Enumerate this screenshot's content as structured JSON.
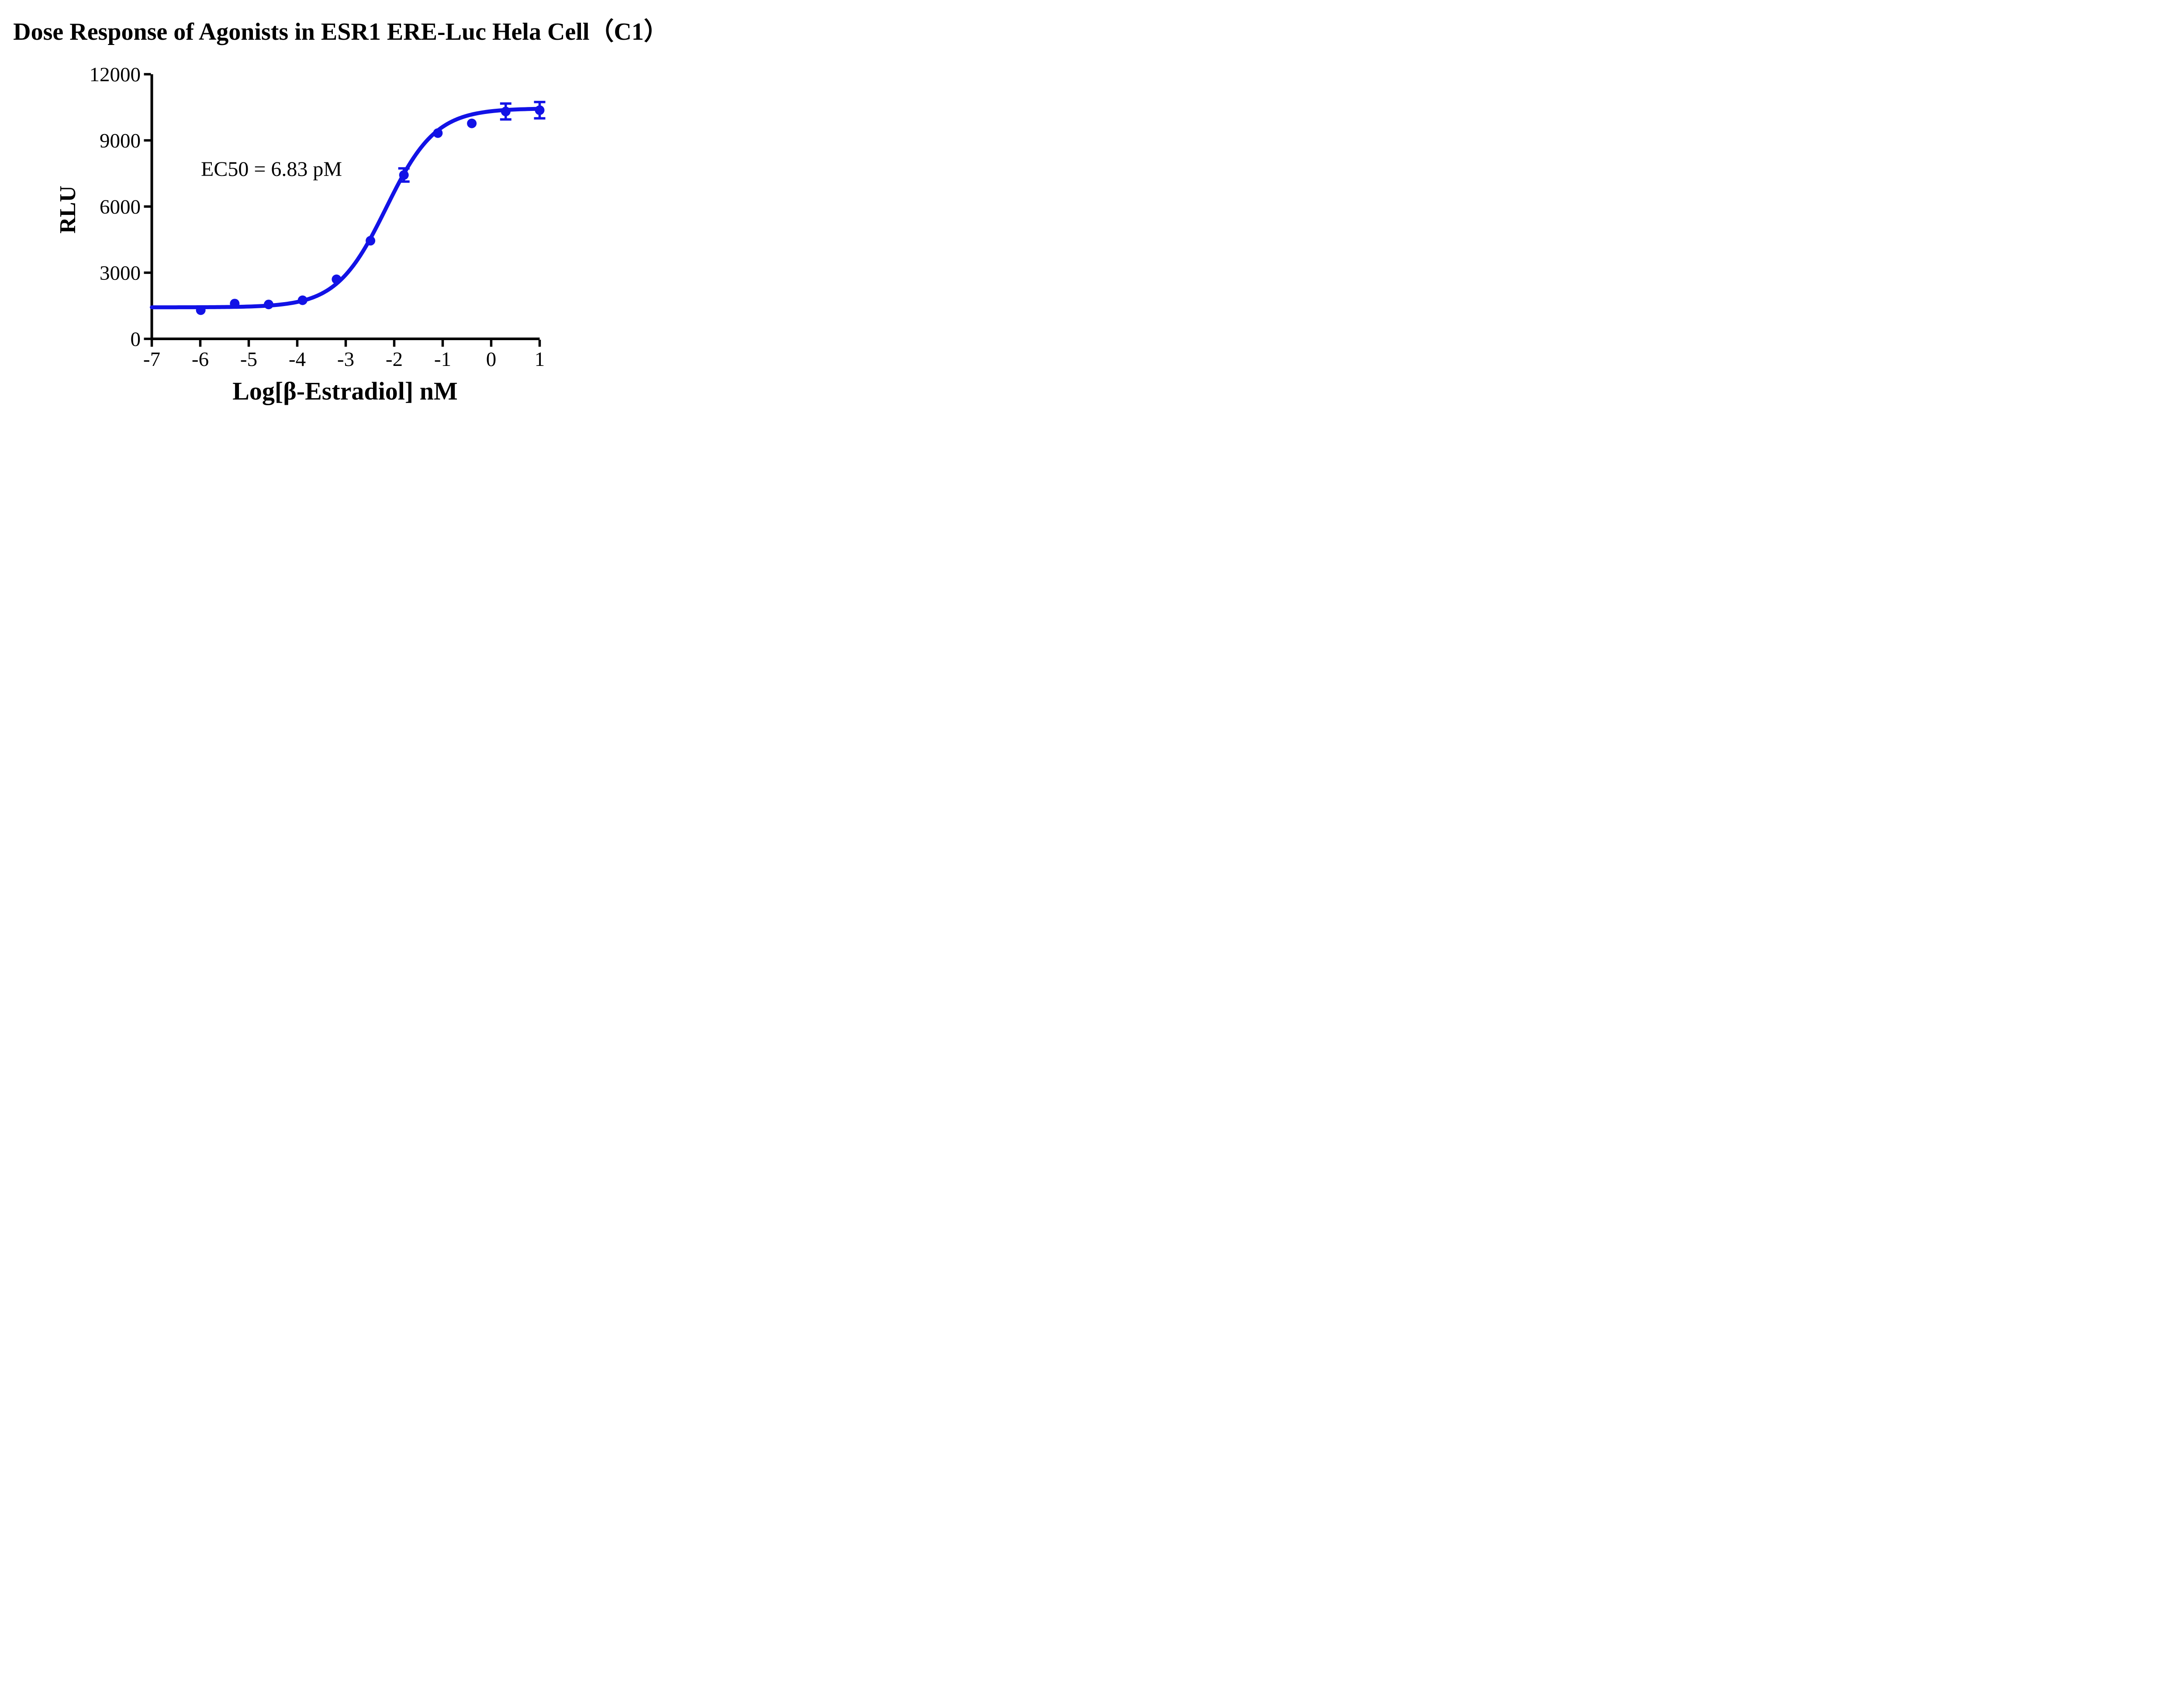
{
  "page": {
    "background": "#FFFFFF"
  },
  "chart_data": {
    "type": "scatter",
    "title": "Dose Response of Agonists in ESR1 ERE-Luc Hela Cell（C1）",
    "xlabel": "Log[β-Estradiol] nM",
    "ylabel": "RLU",
    "annotation": "EC50 = 6.83 pM",
    "xlim": [
      -7,
      1
    ],
    "ylim": [
      0,
      12000
    ],
    "x_ticks": [
      -7,
      -6,
      -5,
      -4,
      -3,
      -2,
      -1,
      0,
      1
    ],
    "y_ticks": [
      0,
      3000,
      6000,
      9000,
      12000
    ],
    "grid": false,
    "legend": false,
    "colors": {
      "series": "#1212E6",
      "axis": "#000000",
      "text": "#000000",
      "background": "#FFFFFF"
    },
    "series": [
      {
        "marker": "circle",
        "color": "#1212E6",
        "points": [
          {
            "x": -5.99,
            "y": 1300,
            "err": null
          },
          {
            "x": -5.29,
            "y": 1600,
            "err": null
          },
          {
            "x": -4.59,
            "y": 1560,
            "err": null
          },
          {
            "x": -3.89,
            "y": 1750,
            "err": null
          },
          {
            "x": -3.19,
            "y": 2700,
            "err": null
          },
          {
            "x": -2.49,
            "y": 4450,
            "err": null
          },
          {
            "x": -1.8,
            "y": 7430,
            "err": 300
          },
          {
            "x": -1.1,
            "y": 9330,
            "err": null
          },
          {
            "x": -0.4,
            "y": 9770,
            "err": null
          },
          {
            "x": 0.3,
            "y": 10310,
            "err": 360
          },
          {
            "x": 1.0,
            "y": 10370,
            "err": 370
          }
        ],
        "fit": {
          "model": "4PL",
          "bottom": 1430,
          "top": 10450,
          "log_ec50": -2.166,
          "hill_slope": 0.85,
          "ec50_label": "EC50 = 6.83 pM"
        }
      }
    ]
  }
}
